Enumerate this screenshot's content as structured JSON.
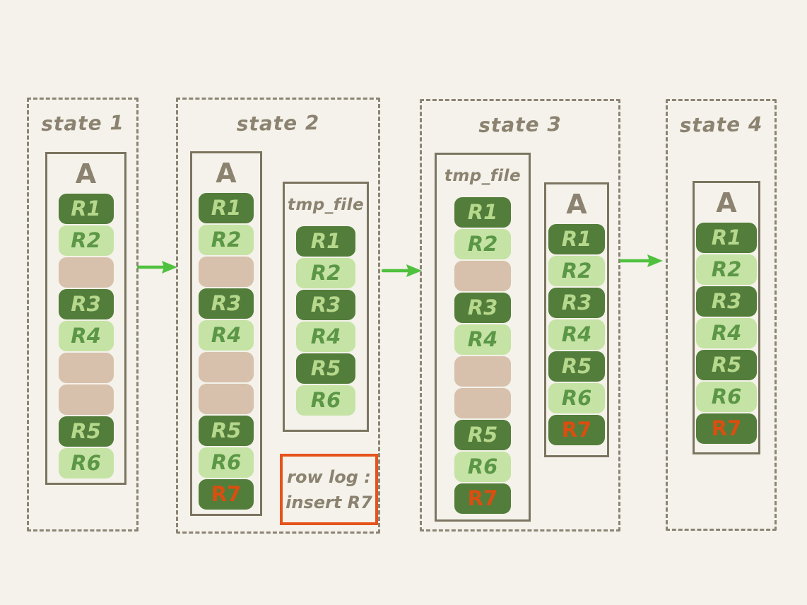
{
  "colors": {
    "background": "#f4f2ea",
    "panel_border": "#8b8474",
    "box_border": "#7b7460",
    "hand_text": "#8b8270",
    "dark_row": "#537d3b",
    "dark_row_text": "#b6d88c",
    "light_row": "#c5e3a4",
    "light_row_text": "#5b9746",
    "dead_row": "#d7c1ac",
    "new_row_text": "#da4e10",
    "arrow": "#4fc13e",
    "log_border": "#e6531c"
  },
  "states": [
    {
      "label": "state 1",
      "files": [
        {
          "name": "A",
          "rows": [
            {
              "label": "R1",
              "type": "dark"
            },
            {
              "label": "R2",
              "type": "light"
            },
            {
              "label": "",
              "type": "dead"
            },
            {
              "label": "R3",
              "type": "dark"
            },
            {
              "label": "R4",
              "type": "light"
            },
            {
              "label": "",
              "type": "dead"
            },
            {
              "label": "",
              "type": "dead"
            },
            {
              "label": "R5",
              "type": "dark"
            },
            {
              "label": "R6",
              "type": "light"
            }
          ]
        }
      ]
    },
    {
      "label": "state 2",
      "files": [
        {
          "name": "A",
          "rows": [
            {
              "label": "R1",
              "type": "dark"
            },
            {
              "label": "R2",
              "type": "light"
            },
            {
              "label": "",
              "type": "dead"
            },
            {
              "label": "R3",
              "type": "dark"
            },
            {
              "label": "R4",
              "type": "light"
            },
            {
              "label": "",
              "type": "dead"
            },
            {
              "label": "",
              "type": "dead"
            },
            {
              "label": "R5",
              "type": "dark"
            },
            {
              "label": "R6",
              "type": "light"
            },
            {
              "label": "R7",
              "type": "new"
            }
          ]
        },
        {
          "name": "tmp_file",
          "rows": [
            {
              "label": "R1",
              "type": "dark"
            },
            {
              "label": "R2",
              "type": "light"
            },
            {
              "label": "R3",
              "type": "dark"
            },
            {
              "label": "R4",
              "type": "light"
            },
            {
              "label": "R5",
              "type": "dark"
            },
            {
              "label": "R6",
              "type": "light"
            }
          ]
        }
      ],
      "log": {
        "line1": "row log :",
        "line2": "insert R7"
      }
    },
    {
      "label": "state 3",
      "files": [
        {
          "name": "tmp_file",
          "rows": [
            {
              "label": "R1",
              "type": "dark"
            },
            {
              "label": "R2",
              "type": "light"
            },
            {
              "label": "",
              "type": "dead"
            },
            {
              "label": "R3",
              "type": "dark"
            },
            {
              "label": "R4",
              "type": "light"
            },
            {
              "label": "",
              "type": "dead"
            },
            {
              "label": "",
              "type": "dead"
            },
            {
              "label": "R5",
              "type": "dark"
            },
            {
              "label": "R6",
              "type": "light"
            },
            {
              "label": "R7",
              "type": "new"
            }
          ]
        },
        {
          "name": "A",
          "rows": [
            {
              "label": "R1",
              "type": "dark"
            },
            {
              "label": "R2",
              "type": "light"
            },
            {
              "label": "R3",
              "type": "dark"
            },
            {
              "label": "R4",
              "type": "light"
            },
            {
              "label": "R5",
              "type": "dark"
            },
            {
              "label": "R6",
              "type": "light"
            },
            {
              "label": "R7",
              "type": "new"
            }
          ]
        }
      ]
    },
    {
      "label": "state 4",
      "files": [
        {
          "name": "A",
          "rows": [
            {
              "label": "R1",
              "type": "dark"
            },
            {
              "label": "R2",
              "type": "light"
            },
            {
              "label": "R3",
              "type": "dark"
            },
            {
              "label": "R4",
              "type": "light"
            },
            {
              "label": "R5",
              "type": "dark"
            },
            {
              "label": "R6",
              "type": "light"
            },
            {
              "label": "R7",
              "type": "new"
            }
          ]
        }
      ]
    }
  ]
}
